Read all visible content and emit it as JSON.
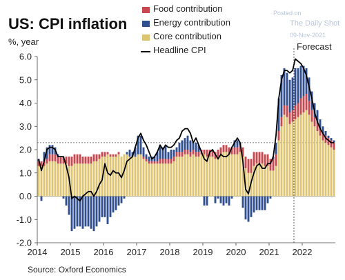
{
  "title": "US: CPI inflation",
  "subtitle": "%, year",
  "source": "Source: Oxford Economics",
  "watermark": {
    "posted_on": "Posted on",
    "site": "The Daily Shot",
    "date": "09-Nov-2021"
  },
  "annotation": {
    "forecast": "Forecast"
  },
  "colors": {
    "food": "#c9474f",
    "energy": "#2f4f8f",
    "core": "#dcc470",
    "headline": "#000000",
    "axis_text": "#222222"
  },
  "chart_data": {
    "type": "bar",
    "stacked": true,
    "title": "US: CPI inflation",
    "ylabel": "%, year",
    "ylim": [
      -2.0,
      6.0
    ],
    "yticks": [
      "-2.0",
      "-1.0",
      "0.0",
      "1.0",
      "2.0",
      "3.0",
      "4.0",
      "5.0",
      "6.0"
    ],
    "xticks": [
      "2014",
      "2015",
      "2016",
      "2017",
      "2018",
      "2019",
      "2020",
      "2021",
      "2022"
    ],
    "x_start": "2014-01",
    "x_end": "2022-12",
    "forecast_start": "2021-10",
    "reference_line": 2.3,
    "legend": [
      {
        "name": "Food contribution",
        "kind": "bar",
        "color": "#c9474f"
      },
      {
        "name": "Energy contribution",
        "kind": "bar",
        "color": "#2f4f8f"
      },
      {
        "name": "Core contribution",
        "kind": "bar",
        "color": "#dcc470"
      },
      {
        "name": "Headline CPI",
        "kind": "line",
        "color": "#000000"
      }
    ],
    "series_order": [
      "core",
      "food",
      "energy"
    ],
    "series": {
      "core": [
        1.3,
        1.3,
        1.3,
        1.4,
        1.5,
        1.5,
        1.5,
        1.4,
        1.4,
        1.4,
        1.4,
        1.3,
        1.3,
        1.4,
        1.4,
        1.4,
        1.4,
        1.4,
        1.4,
        1.4,
        1.5,
        1.5,
        1.6,
        1.7,
        1.7,
        1.8,
        1.7,
        1.7,
        1.7,
        1.8,
        1.7,
        1.8,
        1.8,
        1.7,
        1.7,
        1.7,
        1.8,
        1.8,
        1.6,
        1.5,
        1.4,
        1.4,
        1.4,
        1.4,
        1.4,
        1.4,
        1.4,
        1.4,
        1.4,
        1.5,
        1.7,
        1.7,
        1.7,
        1.8,
        1.8,
        1.7,
        1.8,
        1.7,
        1.7,
        1.8,
        1.8,
        1.7,
        1.7,
        1.7,
        1.6,
        1.7,
        1.8,
        1.9,
        1.9,
        1.8,
        1.8,
        1.8,
        1.8,
        1.9,
        1.7,
        1.2,
        1.0,
        1.0,
        1.3,
        1.4,
        1.4,
        1.4,
        1.3,
        1.3,
        1.1,
        1.1,
        1.3,
        2.4,
        3.0,
        3.5,
        3.4,
        3.1,
        3.2,
        3.3,
        3.4,
        3.5,
        3.6,
        3.7,
        3.5,
        3.2,
        3.0,
        2.8,
        2.6,
        2.4,
        2.3,
        2.2,
        2.1,
        2.0
      ],
      "food": [
        0.2,
        0.2,
        0.2,
        0.2,
        0.3,
        0.3,
        0.3,
        0.3,
        0.3,
        0.3,
        0.3,
        0.4,
        0.4,
        0.4,
        0.4,
        0.4,
        0.3,
        0.3,
        0.3,
        0.3,
        0.3,
        0.3,
        0.2,
        0.2,
        0.2,
        0.1,
        0.1,
        0.1,
        0.1,
        0.1,
        0.0,
        0.0,
        0.0,
        0.0,
        0.0,
        0.0,
        0.0,
        0.0,
        0.1,
        0.1,
        0.1,
        0.1,
        0.1,
        0.1,
        0.2,
        0.2,
        0.2,
        0.2,
        0.2,
        0.2,
        0.2,
        0.2,
        0.2,
        0.2,
        0.2,
        0.2,
        0.2,
        0.2,
        0.2,
        0.2,
        0.2,
        0.3,
        0.3,
        0.3,
        0.3,
        0.3,
        0.3,
        0.3,
        0.3,
        0.3,
        0.3,
        0.3,
        0.3,
        0.3,
        0.4,
        0.5,
        0.6,
        0.6,
        0.6,
        0.5,
        0.5,
        0.5,
        0.5,
        0.5,
        0.5,
        0.5,
        0.5,
        0.4,
        0.4,
        0.4,
        0.5,
        0.5,
        0.5,
        0.6,
        0.6,
        0.7,
        0.7,
        0.7,
        0.6,
        0.5,
        0.4,
        0.4,
        0.3,
        0.3,
        0.3,
        0.3,
        0.3,
        0.3
      ],
      "energy": [
        0.1,
        -0.2,
        0.4,
        0.5,
        0.4,
        0.4,
        0.3,
        0.1,
        0.0,
        -0.1,
        -0.4,
        -0.8,
        -1.5,
        -1.4,
        -1.3,
        -1.3,
        -1.4,
        -1.3,
        -1.3,
        -1.4,
        -1.5,
        -1.3,
        -1.1,
        -0.9,
        -0.9,
        -1.2,
        -0.9,
        -0.7,
        -0.6,
        -0.4,
        -0.3,
        -0.1,
        0.1,
        0.3,
        0.2,
        0.4,
        0.8,
        0.8,
        0.4,
        0.2,
        0.2,
        0.2,
        0.2,
        0.4,
        0.6,
        0.5,
        0.6,
        0.3,
        0.4,
        0.3,
        0.2,
        0.4,
        0.5,
        0.5,
        0.6,
        0.5,
        0.3,
        0.4,
        0.3,
        0.0,
        -0.4,
        -0.4,
        0.0,
        0.0,
        -0.3,
        -0.1,
        -0.3,
        -0.4,
        -0.3,
        -0.4,
        -0.1,
        0.3,
        0.3,
        0.1,
        -0.5,
        -1.0,
        -1.1,
        -0.9,
        -0.7,
        -0.6,
        -0.6,
        -0.6,
        -0.6,
        -0.3,
        -0.1,
        0.1,
        0.5,
        1.4,
        1.8,
        1.6,
        1.4,
        1.4,
        1.4,
        1.6,
        1.5,
        1.4,
        1.3,
        1.1,
        1.0,
        0.8,
        0.6,
        0.5,
        0.4,
        0.3,
        0.2,
        0.1,
        0.1,
        0.1
      ],
      "headline": [
        1.6,
        1.1,
        1.5,
        2.0,
        2.1,
        2.1,
        2.0,
        1.7,
        1.7,
        1.7,
        1.3,
        0.8,
        -0.1,
        0.0,
        -0.1,
        -0.2,
        0.0,
        0.1,
        0.2,
        0.2,
        0.0,
        0.2,
        0.5,
        0.7,
        1.4,
        1.0,
        0.9,
        1.1,
        1.0,
        1.0,
        0.8,
        1.1,
        1.5,
        1.6,
        1.7,
        2.1,
        2.5,
        2.7,
        2.4,
        2.2,
        1.9,
        1.6,
        1.7,
        1.9,
        2.2,
        2.0,
        2.2,
        2.1,
        2.1,
        2.2,
        2.4,
        2.5,
        2.8,
        2.9,
        2.9,
        2.7,
        2.3,
        2.5,
        2.2,
        1.9,
        1.6,
        1.5,
        1.9,
        2.0,
        1.8,
        1.6,
        1.8,
        1.7,
        1.7,
        1.8,
        2.1,
        2.3,
        2.5,
        2.3,
        1.5,
        0.3,
        0.1,
        0.6,
        1.0,
        1.3,
        1.4,
        1.2,
        1.2,
        1.4,
        1.4,
        1.7,
        2.6,
        4.2,
        5.0,
        5.4,
        5.4,
        5.3,
        5.4,
        5.9,
        5.8,
        5.7,
        5.5,
        5.2,
        4.7,
        4.2,
        3.6,
        3.2,
        2.9,
        2.7,
        2.5,
        2.4,
        2.3,
        2.3
      ]
    }
  }
}
